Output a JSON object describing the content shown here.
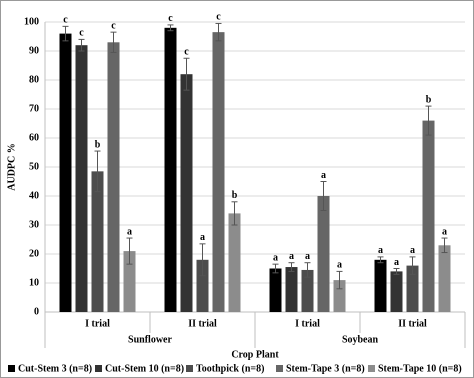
{
  "chart_data": {
    "type": "bar",
    "y_label": "AUDPC %",
    "x_label": "Crop Plant",
    "groups": [
      "Sunflower",
      "Soybean"
    ],
    "categories": [
      "I trial",
      "II trial",
      "I trial",
      "II trial"
    ],
    "ylim": [
      0,
      100
    ],
    "yticks": [
      0,
      10,
      20,
      30,
      40,
      50,
      60,
      70,
      80,
      90,
      100
    ],
    "grid": true,
    "legend": "bottom",
    "series": [
      {
        "name": "Cut-Stem 3 (n=8)",
        "color": "#000000",
        "values": [
          96,
          98,
          15,
          18
        ],
        "errors": [
          2.5,
          1,
          1.5,
          1
        ],
        "labels": [
          "c",
          "c",
          "a",
          "a"
        ]
      },
      {
        "name": "Cut-Stem 10 (n=8)",
        "color": "#333333",
        "values": [
          92,
          82,
          15.5,
          14
        ],
        "errors": [
          2,
          5.5,
          1.5,
          1
        ],
        "labels": [
          "c",
          "c",
          "a",
          "a"
        ]
      },
      {
        "name": "Toothpick (n=8)",
        "color": "#4d4d4d",
        "values": [
          48.5,
          18,
          14.5,
          16
        ],
        "errors": [
          7,
          5.5,
          2.5,
          3
        ],
        "labels": [
          "b",
          "a",
          "a",
          "a"
        ]
      },
      {
        "name": "Stem-Tape 3 (n=8)",
        "color": "#666666",
        "values": [
          93,
          96.5,
          40,
          66
        ],
        "errors": [
          3.5,
          3,
          5,
          5
        ],
        "labels": [
          "c",
          "c",
          "a",
          "b"
        ]
      },
      {
        "name": "Stem-Tape 10 (n=8)",
        "color": "#8c8c8c",
        "values": [
          21,
          34,
          11,
          23
        ],
        "errors": [
          4.5,
          4,
          3,
          2.5
        ],
        "labels": [
          "a",
          "b",
          "a",
          "a"
        ]
      }
    ]
  }
}
